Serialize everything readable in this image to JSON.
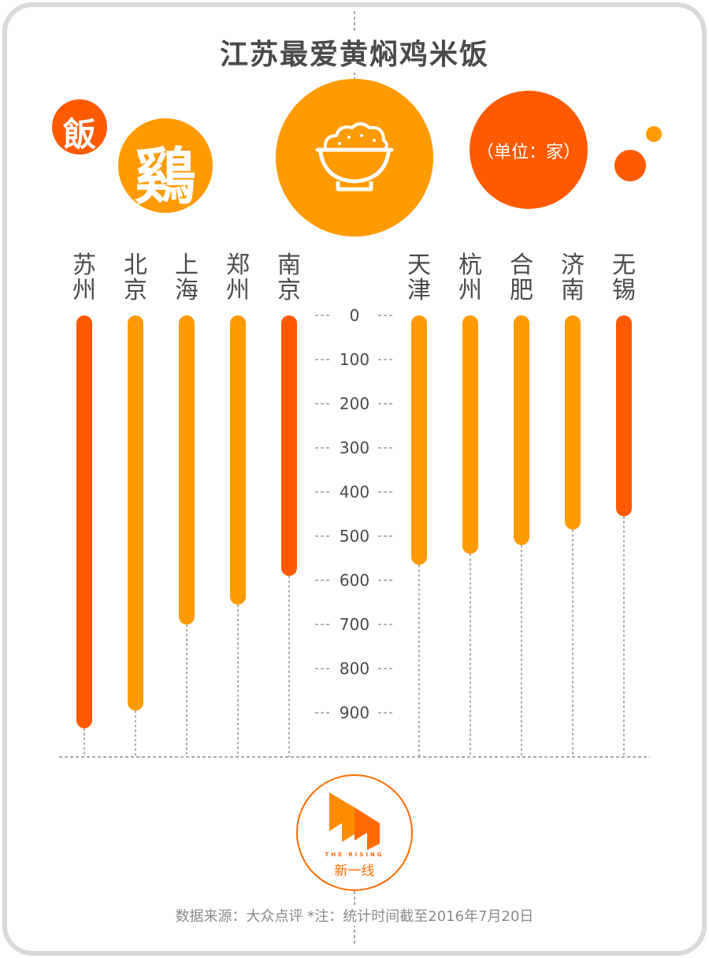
{
  "title": "江苏最爱黄焖鸡米饭",
  "badges": {
    "fan": "飯",
    "ji": "鷄"
  },
  "unit_label": "（单位：家）",
  "logo": {
    "en": "THE RISING",
    "cn": "新一线"
  },
  "source": "数据来源：大众点评 *注：统计时间截至2016年7月20日",
  "colors": {
    "dark_orange": "#ff5a00",
    "light_orange": "#ff9a00",
    "text": "#4a4a4a",
    "frame": "#d9d9d9"
  },
  "chart_data": {
    "type": "bar",
    "orientation": "vertical-down",
    "title": "江苏最爱黄焖鸡米饭",
    "ylabel": "（单位：家）",
    "ylim": [
      0,
      950
    ],
    "ticks": [
      0,
      100,
      200,
      300,
      400,
      500,
      600,
      700,
      800,
      900
    ],
    "categories": [
      "苏州",
      "北京",
      "上海",
      "郑州",
      "南京",
      "天津",
      "杭州",
      "合肥",
      "济南",
      "无锡"
    ],
    "values": [
      935,
      895,
      700,
      655,
      590,
      565,
      540,
      520,
      485,
      455
    ],
    "bar_colors": [
      "#ff5a00",
      "#ff9a00",
      "#ff9a00",
      "#ff9a00",
      "#ff5a00",
      "#ff9a00",
      "#ff9a00",
      "#ff9a00",
      "#ff9a00",
      "#ff5a00"
    ]
  }
}
